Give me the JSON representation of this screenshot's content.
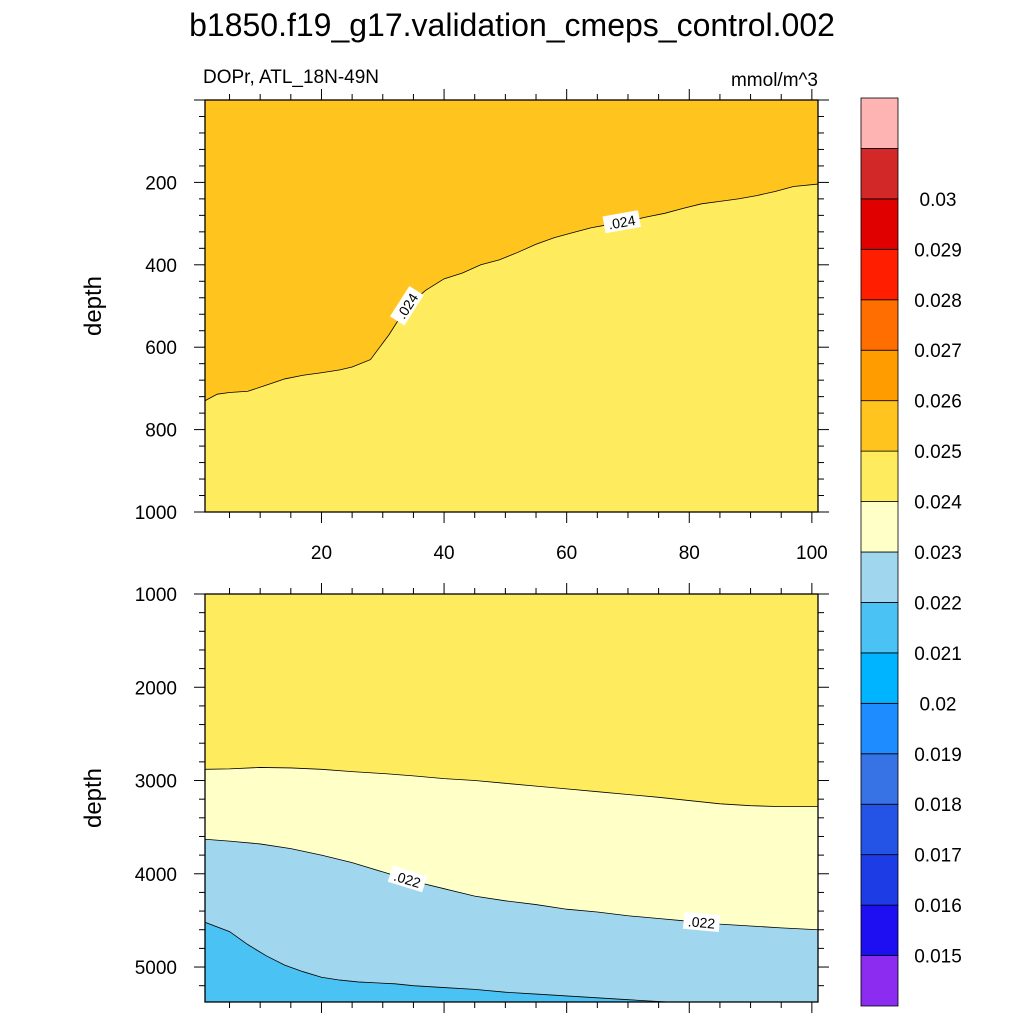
{
  "title": "b1850.f19_g17.validation_cmeps_control.002",
  "chart_data": [
    {
      "type": "contour",
      "panel": "upper",
      "left_label": "DOPr, ATL_18N-49N",
      "right_label": "mmol/m^3",
      "xlabel": "",
      "ylabel": "depth",
      "xlim": [
        1,
        101
      ],
      "ylim": [
        0,
        1000
      ],
      "y_reversed": true,
      "x_ticks": [
        20,
        40,
        60,
        80,
        100
      ],
      "y_ticks": [
        200,
        400,
        600,
        800,
        1000
      ],
      "regions": [
        {
          "range": "0.024-0.025",
          "color": "#ffc51e"
        },
        {
          "range": "0.023-0.024",
          "color": "#ffeb5e"
        }
      ],
      "contours": [
        {
          "level": 0.024,
          "label": ".024",
          "x": [
            1,
            3,
            5,
            8,
            11,
            14,
            17,
            20,
            23,
            25,
            28,
            31,
            34,
            37,
            40,
            43,
            46,
            49,
            52,
            55,
            58,
            61,
            64,
            67,
            70,
            73,
            76,
            79,
            82,
            85,
            88,
            91,
            94,
            97,
            101
          ],
          "y": [
            730,
            714,
            710,
            707,
            692,
            677,
            668,
            662,
            655,
            648,
            630,
            570,
            500,
            462,
            434,
            420,
            400,
            388,
            370,
            350,
            334,
            322,
            310,
            302,
            294,
            284,
            275,
            263,
            252,
            246,
            240,
            232,
            222,
            210,
            204
          ]
        }
      ]
    },
    {
      "type": "contour",
      "panel": "lower",
      "xlabel": "",
      "ylabel": "depth",
      "xlim": [
        1,
        101
      ],
      "ylim": [
        1000,
        5375
      ],
      "y_reversed": true,
      "x_ticks": [
        20,
        40,
        60,
        80,
        100
      ],
      "y_ticks": [
        1000,
        2000,
        3000,
        4000,
        5000
      ],
      "regions": [
        {
          "range": "0.023-0.024",
          "color": "#ffeb5e"
        },
        {
          "range": "0.022-0.023",
          "color": "#ffffc8"
        },
        {
          "range": "0.021-0.022",
          "color": "#a0d6ee"
        },
        {
          "range": "0.020-0.021",
          "color": "#4ac2f4"
        }
      ],
      "contours": [
        {
          "level": 0.023,
          "label": "",
          "x": [
            1,
            5,
            10,
            15,
            20,
            25,
            30,
            35,
            40,
            45,
            50,
            55,
            60,
            65,
            70,
            75,
            80,
            85,
            90,
            95,
            101
          ],
          "y": [
            2880,
            2875,
            2860,
            2865,
            2880,
            2905,
            2925,
            2950,
            2980,
            3000,
            3030,
            3060,
            3090,
            3120,
            3150,
            3180,
            3215,
            3250,
            3270,
            3280,
            3280
          ]
        },
        {
          "level": 0.022,
          "label": ".022",
          "x": [
            1,
            5,
            10,
            15,
            20,
            25,
            30,
            35,
            40,
            45,
            50,
            55,
            60,
            65,
            70,
            75,
            80,
            85,
            90,
            95,
            101
          ],
          "y": [
            3630,
            3650,
            3680,
            3730,
            3800,
            3880,
            3980,
            4080,
            4160,
            4240,
            4290,
            4330,
            4380,
            4410,
            4450,
            4480,
            4510,
            4540,
            4560,
            4580,
            4600
          ]
        },
        {
          "level": 0.021,
          "label": "",
          "x": [
            1,
            5,
            8,
            11,
            14,
            17,
            20,
            23,
            26,
            29,
            32,
            35,
            40,
            45,
            50,
            55,
            60,
            65,
            70,
            75,
            80,
            82
          ],
          "y": [
            4520,
            4620,
            4760,
            4880,
            4980,
            5050,
            5110,
            5140,
            5160,
            5170,
            5180,
            5200,
            5220,
            5240,
            5270,
            5290,
            5310,
            5330,
            5350,
            5370,
            5385,
            5390
          ]
        }
      ]
    },
    {
      "type": "colorbar",
      "colors": [
        "#8c2cf0",
        "#1e0ef2",
        "#1e3ce6",
        "#2454e6",
        "#3873e6",
        "#1e8cff",
        "#00b4ff",
        "#4ac2f4",
        "#a0d6ee",
        "#ffffc8",
        "#ffeb5e",
        "#ffc51e",
        "#ff9d00",
        "#ff6e00",
        "#ff1e00",
        "#e00000",
        "#d22828",
        "#ffb4b4"
      ],
      "labels": [
        "0.015",
        "0.016",
        "0.017",
        "0.018",
        "0.019",
        "0.02",
        "0.021",
        "0.022",
        "0.023",
        "0.024",
        "0.025",
        "0.026",
        "0.027",
        "0.028",
        "0.029",
        "0.03"
      ]
    }
  ]
}
